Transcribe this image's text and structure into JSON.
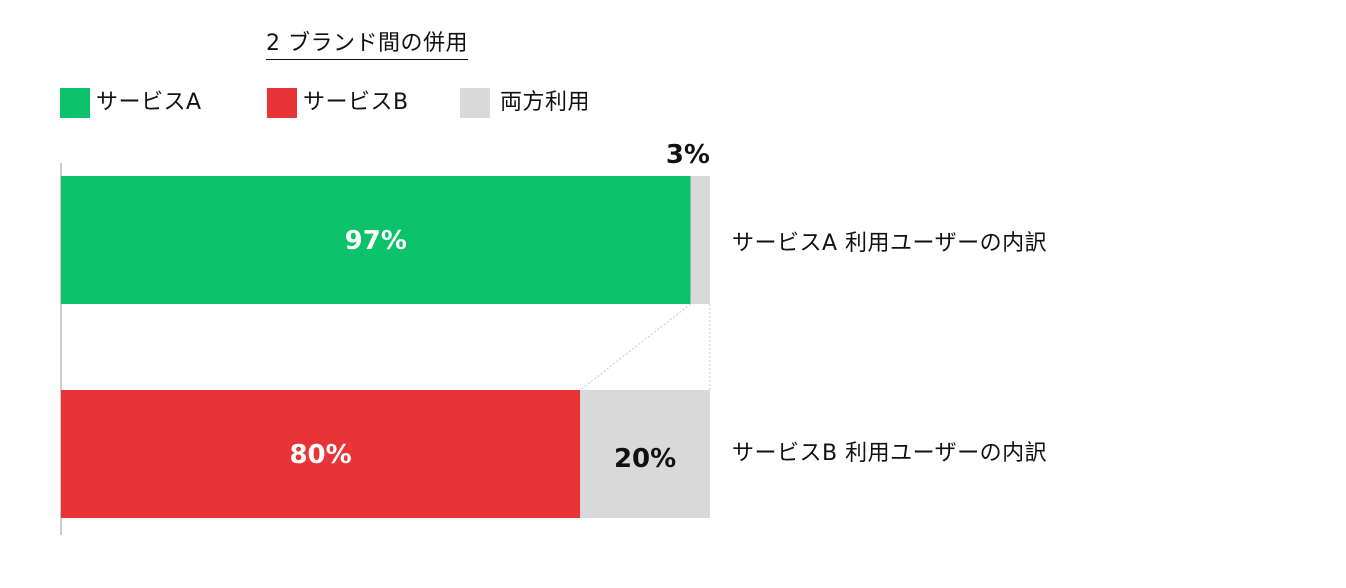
{
  "chart_data": {
    "type": "bar",
    "orientation": "horizontal",
    "stacked": true,
    "normalized": true,
    "title": "2 ブランド間の併用",
    "legend_position": "top-left",
    "grid": false,
    "xlim": [
      0,
      100
    ],
    "series": [
      {
        "name": "サービスA",
        "color": "#0bc16a"
      },
      {
        "name": "サービスB",
        "color": "#e83437"
      },
      {
        "name": "両方利用",
        "color": "#d9d9d9"
      }
    ],
    "rows": [
      {
        "label": "サービスA 利用ユーザーの内訳",
        "segments": [
          {
            "series": "サービスA",
            "value": 97,
            "text": "97%"
          },
          {
            "series": "両方利用",
            "value": 3,
            "text": "3%"
          }
        ]
      },
      {
        "label": "サービスB 利用ユーザーの内訳",
        "segments": [
          {
            "series": "サービスB",
            "value": 80,
            "text": "80%"
          },
          {
            "series": "両方利用",
            "value": 20,
            "text": "20%"
          }
        ]
      }
    ]
  }
}
